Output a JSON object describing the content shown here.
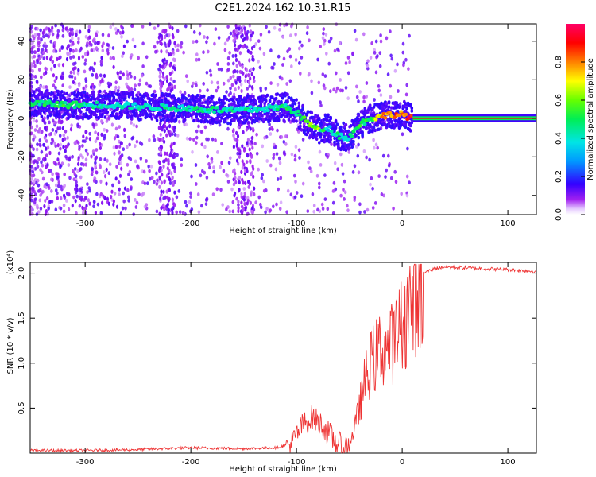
{
  "title": "C2E1.2024.162.10.31.R15",
  "chart_data": [
    {
      "type": "heatmap",
      "name": "spectrogram",
      "xlabel": "Height of straight line (km)",
      "ylabel": "Frequency (Hz)",
      "xlim": [
        -352,
        127
      ],
      "ylim": [
        -50,
        49
      ],
      "xticks": [
        "-300",
        "-200",
        "-100",
        "0",
        "100"
      ],
      "xtick_values": [
        -300,
        -200,
        -100,
        0,
        100
      ],
      "yticks": [
        "40",
        "20",
        "0",
        "-20",
        "-40"
      ],
      "ytick_values": [
        40,
        20,
        0,
        -20,
        -40
      ],
      "colorbar": {
        "label": "Normalized spectral amplitude",
        "range": [
          0,
          1
        ],
        "ticks": [
          "0.0",
          "0.2",
          "0.4",
          "0.6",
          "0.8"
        ],
        "tick_values": [
          0.0,
          0.2,
          0.4,
          0.6,
          0.8
        ]
      },
      "ridge": {
        "x": [
          -352,
          -320,
          -280,
          -240,
          -200,
          -160,
          -130,
          -110,
          -100,
          -90,
          -80,
          -70,
          -60,
          -50,
          -40,
          -30,
          -20,
          -10,
          0,
          10,
          127
        ],
        "frequency": [
          8,
          7,
          7,
          6,
          5,
          4,
          5,
          6,
          3,
          -2,
          -6,
          -5,
          -9,
          -10,
          -3,
          0,
          1,
          2,
          2,
          0,
          0
        ],
        "amplitude": [
          0.5,
          0.55,
          0.45,
          0.45,
          0.5,
          0.5,
          0.45,
          0.5,
          0.55,
          0.6,
          0.7,
          0.4,
          0.5,
          0.45,
          0.55,
          0.6,
          0.8,
          0.85,
          0.9,
          1.0,
          1.0
        ]
      }
    },
    {
      "type": "line",
      "name": "snr",
      "xlabel": "Height of straight line (km)",
      "ylabel": "SNR (10 * v/v)",
      "multiplier": "(x10⁴)",
      "xlim": [
        -352,
        127
      ],
      "ylim": [
        0,
        2.12
      ],
      "xticks": [
        "-300",
        "-200",
        "-100",
        "0",
        "100"
      ],
      "xtick_values": [
        -300,
        -200,
        -100,
        0,
        100
      ],
      "yticks": [
        "2.0",
        "1.5",
        "1.0",
        "0.5"
      ],
      "ytick_values": [
        2.0,
        1.5,
        1.0,
        0.5
      ],
      "series": [
        {
          "name": "SNR",
          "color": "#ee3333",
          "x": [
            -352,
            -300,
            -250,
            -200,
            -150,
            -120,
            -105,
            -95,
            -85,
            -75,
            -65,
            -55,
            -50,
            -45,
            -40,
            -35,
            -30,
            -25,
            -20,
            -15,
            -10,
            -5,
            0,
            5,
            10,
            20,
            30,
            40,
            60,
            80,
            100,
            127
          ],
          "y": [
            0.03,
            0.03,
            0.04,
            0.06,
            0.05,
            0.06,
            0.1,
            0.3,
            0.4,
            0.3,
            0.15,
            0.05,
            0.1,
            0.3,
            0.6,
            0.9,
            1.1,
            1.2,
            1.3,
            1.3,
            1.35,
            1.45,
            1.6,
            1.75,
            1.9,
            2.0,
            2.05,
            2.07,
            2.06,
            2.05,
            2.04,
            2.02
          ]
        }
      ]
    }
  ],
  "colors": {
    "line": "#ee3333",
    "background": "#ffffff"
  }
}
